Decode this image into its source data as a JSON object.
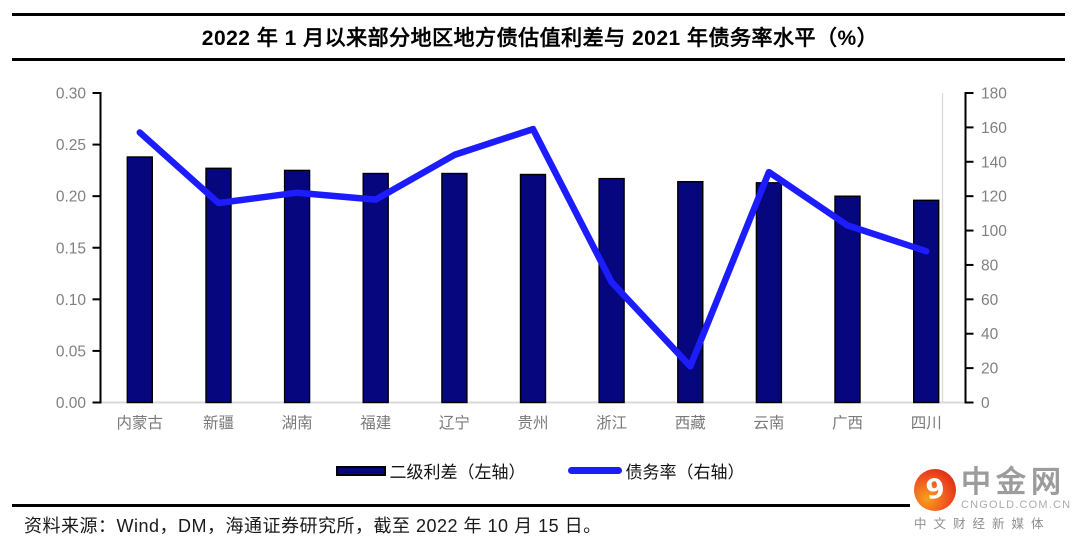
{
  "title": "2022 年 1 月以来部分地区地方债估值利差与 2021 年债务率水平（%）",
  "chart_data": {
    "type": "bar",
    "subtype": "dual-axis bar + line",
    "categories": [
      "内蒙古",
      "新疆",
      "湖南",
      "福建",
      "辽宁",
      "贵州",
      "浙江",
      "西藏",
      "云南",
      "广西",
      "四川"
    ],
    "series": [
      {
        "name": "二级利差（左轴）",
        "type": "bar",
        "axis": "left",
        "color": "#06067F",
        "values": [
          0.238,
          0.227,
          0.225,
          0.222,
          0.222,
          0.221,
          0.217,
          0.214,
          0.213,
          0.2,
          0.196
        ]
      },
      {
        "name": "债务率（右轴）",
        "type": "line",
        "axis": "right",
        "color": "#1C1CFF",
        "values": [
          157,
          116,
          122,
          118,
          144,
          159,
          70,
          21,
          134,
          103,
          88
        ]
      }
    ],
    "left_axis": {
      "min": 0,
      "max": 0.3,
      "step": 0.05,
      "ticks": [
        "0.00",
        "0.05",
        "0.10",
        "0.15",
        "0.20",
        "0.25",
        "0.30"
      ]
    },
    "right_axis": {
      "min": 0,
      "max": 180,
      "step": 20,
      "ticks": [
        "0",
        "20",
        "40",
        "60",
        "80",
        "100",
        "120",
        "140",
        "160",
        "180"
      ]
    },
    "grid": false,
    "legend_position": "bottom"
  },
  "source_note": "资料来源：Wind，DM，海通证券研究所，截至 2022 年 10 月 15 日。",
  "logo": {
    "name": "中金网",
    "domain": "CNGOLD.COM.CN",
    "tagline": "中文财经新媒体",
    "swirl_glyph": "9"
  },
  "colors": {
    "bar_fill": "#06067F",
    "bar_border": "#000000",
    "line": "#1C1CFF",
    "axis": "#000000",
    "tick_label": "#808080",
    "category_label": "#7a7a7a",
    "baseline": "#d9d9d9",
    "rule": "#000000"
  }
}
